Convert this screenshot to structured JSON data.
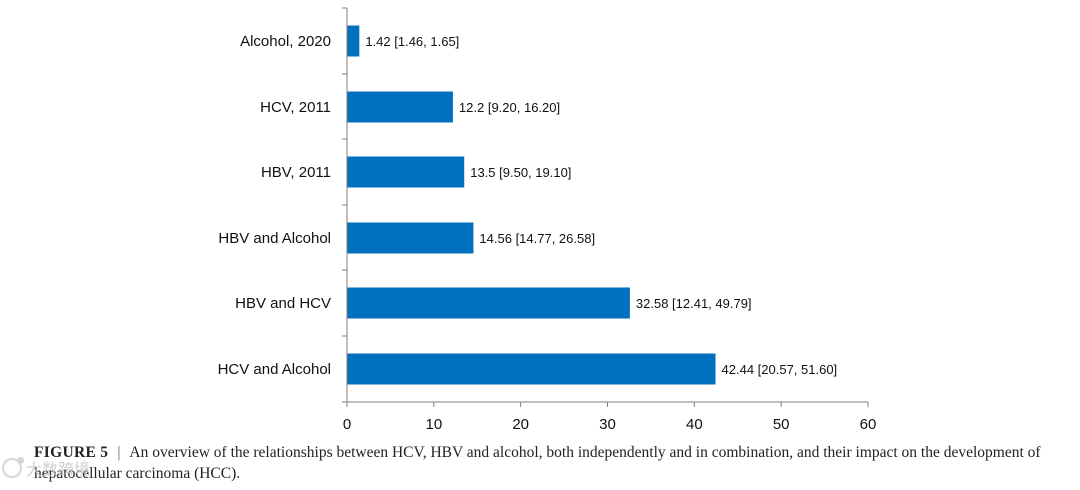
{
  "chart_data": {
    "type": "bar",
    "orientation": "horizontal",
    "categories": [
      "Alcohol, 2020",
      "HCV, 2011",
      "HBV, 2011",
      "HBV and Alcohol",
      "HBV and HCV",
      "HCV and Alcohol"
    ],
    "values": [
      1.42,
      12.2,
      13.5,
      14.56,
      32.58,
      42.44
    ],
    "data_labels": [
      "1.42 [1.46, 1.65]",
      "12.2 [9.20, 16.20]",
      "13.5 [9.50, 19.10]",
      "14.56 [14.77, 26.58]",
      "32.58 [12.41, 49.79]",
      "42.44 [20.57, 51.60]"
    ],
    "xlim": [
      0,
      60
    ],
    "xticks": [
      "0",
      "10",
      "20",
      "30",
      "40",
      "50",
      "60"
    ],
    "bar_color": "#0070C0",
    "title": "",
    "xlabel": "",
    "ylabel": "",
    "grid": false
  },
  "caption": {
    "figure_label": "FIGURE 5",
    "separator": "|",
    "text": "An overview of the relationships between HCV, HBV and alcohol, both independently and in combination, and their impact on the development of hepatocellular carcinoma (HCC)."
  },
  "watermark": {
    "text": "大数跨境"
  }
}
